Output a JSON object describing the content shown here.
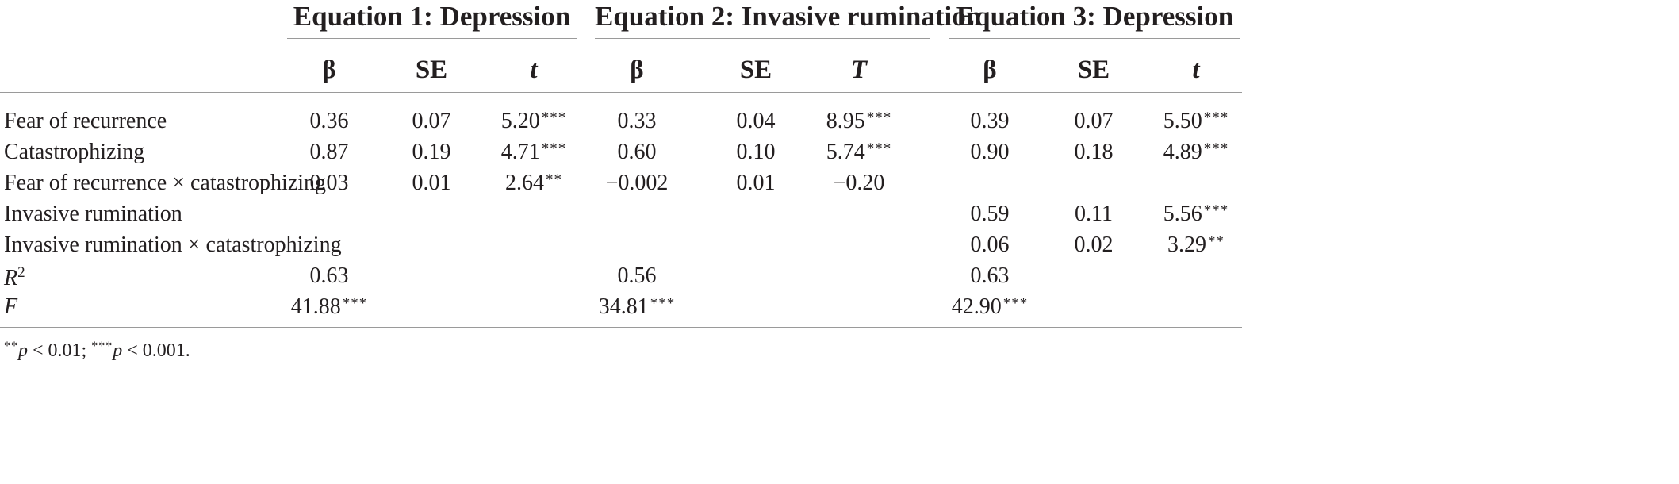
{
  "groups": [
    {
      "title": "Equation 1: Depression"
    },
    {
      "title": "Equation 2: Invasive rumination"
    },
    {
      "title": "Equation 3: Depression"
    }
  ],
  "columns": [
    "β",
    "SE",
    "t",
    "β",
    "SE",
    "T",
    "β",
    "SE",
    "t"
  ],
  "rows": [
    {
      "label": "Fear of recurrence",
      "cells": [
        {
          "v": "0.36",
          "s": ""
        },
        {
          "v": "0.07",
          "s": ""
        },
        {
          "v": "5.20",
          "s": "***"
        },
        {
          "v": "0.33",
          "s": ""
        },
        {
          "v": "0.04",
          "s": ""
        },
        {
          "v": "8.95",
          "s": "***"
        },
        {
          "v": "0.39",
          "s": ""
        },
        {
          "v": "0.07",
          "s": ""
        },
        {
          "v": "5.50",
          "s": "***"
        }
      ]
    },
    {
      "label": "Catastrophizing",
      "cells": [
        {
          "v": "0.87",
          "s": ""
        },
        {
          "v": "0.19",
          "s": ""
        },
        {
          "v": "4.71",
          "s": "***"
        },
        {
          "v": "0.60",
          "s": ""
        },
        {
          "v": "0.10",
          "s": ""
        },
        {
          "v": "5.74",
          "s": "***"
        },
        {
          "v": "0.90",
          "s": ""
        },
        {
          "v": "0.18",
          "s": ""
        },
        {
          "v": "4.89",
          "s": "***"
        }
      ]
    },
    {
      "label": "Fear of recurrence × catastrophizing",
      "cells": [
        {
          "v": "0.03",
          "s": ""
        },
        {
          "v": "0.01",
          "s": ""
        },
        {
          "v": "2.64",
          "s": "**"
        },
        {
          "v": "−0.002",
          "s": ""
        },
        {
          "v": "0.01",
          "s": ""
        },
        {
          "v": "−0.20",
          "s": ""
        },
        {
          "v": "",
          "s": ""
        },
        {
          "v": "",
          "s": ""
        },
        {
          "v": "",
          "s": ""
        }
      ]
    },
    {
      "label": "Invasive rumination",
      "cells": [
        {
          "v": "",
          "s": ""
        },
        {
          "v": "",
          "s": ""
        },
        {
          "v": "",
          "s": ""
        },
        {
          "v": "",
          "s": ""
        },
        {
          "v": "",
          "s": ""
        },
        {
          "v": "",
          "s": ""
        },
        {
          "v": "0.59",
          "s": ""
        },
        {
          "v": "0.11",
          "s": ""
        },
        {
          "v": "5.56",
          "s": "***"
        }
      ]
    },
    {
      "label": "Invasive rumination × catastrophizing",
      "cells": [
        {
          "v": "",
          "s": ""
        },
        {
          "v": "",
          "s": ""
        },
        {
          "v": "",
          "s": ""
        },
        {
          "v": "",
          "s": ""
        },
        {
          "v": "",
          "s": ""
        },
        {
          "v": "",
          "s": ""
        },
        {
          "v": "0.06",
          "s": ""
        },
        {
          "v": "0.02",
          "s": ""
        },
        {
          "v": "3.29",
          "s": "**"
        }
      ]
    }
  ],
  "r2": {
    "label": "R",
    "sup": "2",
    "values": [
      {
        "v": "0.63",
        "s": ""
      },
      {
        "v": "0.56",
        "s": ""
      },
      {
        "v": "0.63",
        "s": ""
      }
    ]
  },
  "f": {
    "label": "F",
    "values": [
      {
        "v": "41.88",
        "s": "***"
      },
      {
        "v": "34.81",
        "s": "***"
      },
      {
        "v": "42.90",
        "s": "***"
      }
    ]
  },
  "note": {
    "p1_stars": "**",
    "p1_sym": "p",
    "p1_text": " < 0.01; ",
    "p2_stars": "***",
    "p2_sym": "p",
    "p2_text": " < 0.001."
  }
}
